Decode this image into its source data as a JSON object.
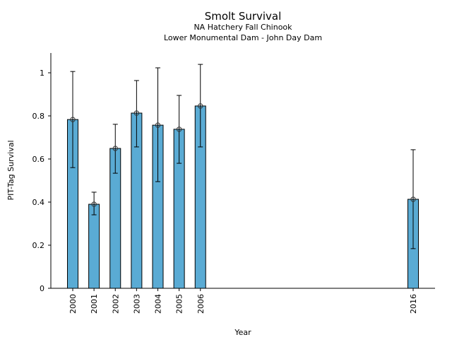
{
  "chart_data": {
    "type": "bar",
    "title": "Smolt Survival",
    "subtitle_lines": [
      "NA Hatchery Fall Chinook",
      "Lower Monumental Dam - John Day Dam"
    ],
    "xlabel": "Year",
    "ylabel": "PIT-Tag Survival",
    "categories": [
      "2000",
      "2001",
      "2002",
      "2003",
      "2004",
      "2005",
      "2006",
      "2016"
    ],
    "x": [
      2000,
      2001,
      2002,
      2003,
      2004,
      2005,
      2006,
      2016
    ],
    "values": [
      0.783,
      0.39,
      0.649,
      0.813,
      0.757,
      0.738,
      0.846,
      0.413
    ],
    "error_upper": [
      1.006,
      0.446,
      0.761,
      0.964,
      1.023,
      0.895,
      1.039,
      0.643
    ],
    "error_lower": [
      0.56,
      0.341,
      0.534,
      0.656,
      0.495,
      0.58,
      0.656,
      0.184
    ],
    "yticks": [
      "0",
      "0.2",
      "0.4",
      "0.6",
      "0.8",
      "1"
    ],
    "ylim": [
      0,
      1.09
    ],
    "xlim": [
      1998.9,
      2017.0
    ],
    "grid": false,
    "bar_color": "#5aabd4",
    "edge_color": "#000000"
  }
}
